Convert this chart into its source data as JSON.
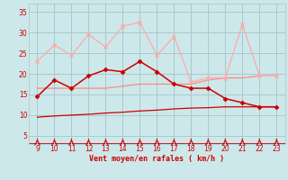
{
  "x": [
    9,
    10,
    11,
    12,
    13,
    14,
    15,
    16,
    17,
    18,
    19,
    20,
    21,
    22,
    23
  ],
  "line_dark_red": [
    14.5,
    18.5,
    16.5,
    19.5,
    21,
    20.5,
    23,
    20.5,
    17.5,
    16.5,
    16.5,
    14,
    13,
    12,
    12
  ],
  "line_light_red": [
    23,
    27,
    24.5,
    29.5,
    26.5,
    31.5,
    32.5,
    24.5,
    29,
    18,
    19,
    19,
    32,
    19.5,
    19.5
  ],
  "line_avg_pink": [
    16.5,
    16.5,
    16.5,
    16.5,
    16.5,
    17,
    17.5,
    17.5,
    17.5,
    17.5,
    18.5,
    19,
    19,
    19.5,
    19.5
  ],
  "line_avg_darkred": [
    9.5,
    9.8,
    10.0,
    10.2,
    10.5,
    10.7,
    11.0,
    11.2,
    11.5,
    11.7,
    11.8,
    12.0,
    12.0,
    12.0,
    12.0
  ],
  "bg_color": "#cde8ea",
  "grid_color": "#aac8cc",
  "dark_red": "#cc0000",
  "light_red": "#ffaaaa",
  "medium_red": "#ff8888",
  "xlabel": "Vent moyen/en rafales ( km/h )",
  "ylim": [
    3,
    37
  ],
  "xlim": [
    8.5,
    23.5
  ],
  "yticks": [
    5,
    10,
    15,
    20,
    25,
    30,
    35
  ],
  "xticks": [
    9,
    10,
    11,
    12,
    13,
    14,
    15,
    16,
    17,
    18,
    19,
    20,
    21,
    22,
    23
  ]
}
